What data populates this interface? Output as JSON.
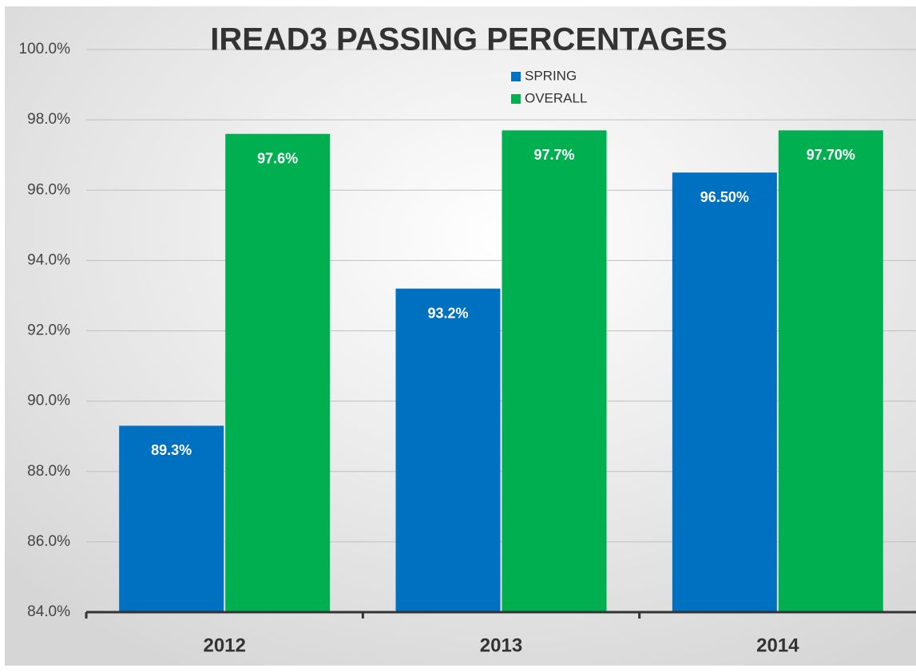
{
  "chart_data": {
    "type": "bar",
    "title": "IREAD3 PASSING PERCENTAGES",
    "categories": [
      "2012",
      "2013",
      "2014"
    ],
    "series": [
      {
        "name": "SPRING",
        "color": "#0070c0",
        "values": [
          89.3,
          93.2,
          96.5
        ],
        "value_labels": [
          "89.3%",
          "93.2%",
          "96.50%"
        ]
      },
      {
        "name": "OVERALL",
        "color": "#00b050",
        "values": [
          97.6,
          97.7,
          97.7
        ],
        "value_labels": [
          "97.6%",
          "97.7%",
          "97.70%"
        ]
      }
    ],
    "ylim": [
      84,
      100
    ],
    "yticks": [
      {
        "value": 84,
        "label": "84.0%"
      },
      {
        "value": 86,
        "label": "86.0%"
      },
      {
        "value": 88,
        "label": "88.0%"
      },
      {
        "value": 90,
        "label": "90.0%"
      },
      {
        "value": 92,
        "label": "92.0%"
      },
      {
        "value": 94,
        "label": "94.0%"
      },
      {
        "value": 96,
        "label": "96.0%"
      },
      {
        "value": 98,
        "label": "98.0%"
      },
      {
        "value": 100,
        "label": "100.0%"
      }
    ],
    "grid": true,
    "legend": "top"
  }
}
